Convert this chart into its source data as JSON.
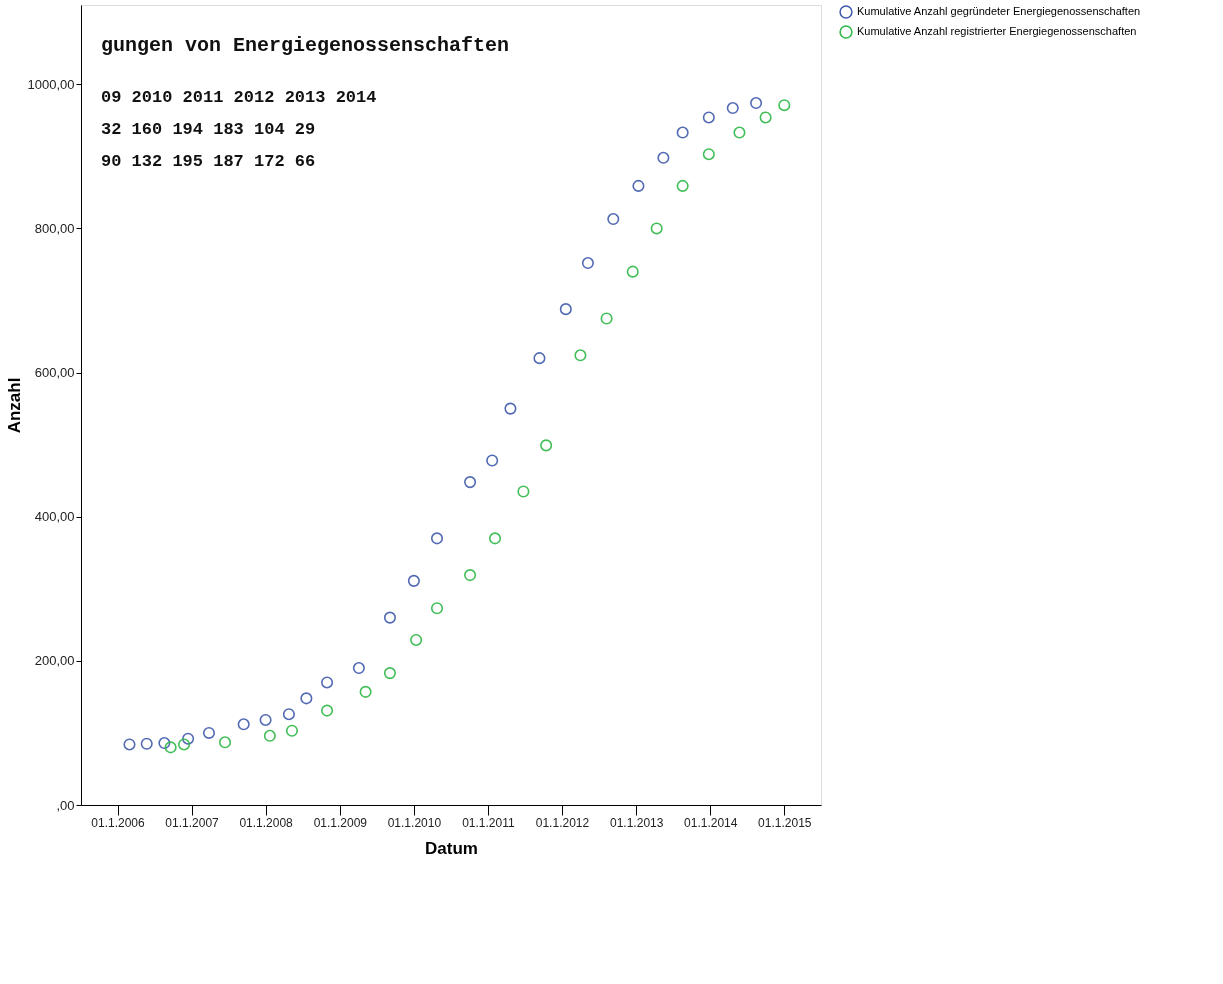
{
  "chart_data": {
    "type": "scatter",
    "xlabel": "Datum",
    "ylabel": "Anzahl",
    "xlim": [
      "2005-07-05",
      "2015-07-01"
    ],
    "xticks": [
      {
        "value": "2006-01-01",
        "label": "01.1.2006"
      },
      {
        "value": "2007-01-01",
        "label": "01.1.2007"
      },
      {
        "value": "2008-01-01",
        "label": "01.1.2008"
      },
      {
        "value": "2009-01-01",
        "label": "01.1.2009"
      },
      {
        "value": "2010-01-01",
        "label": "01.1.2010"
      },
      {
        "value": "2011-01-01",
        "label": "01.1.2011"
      },
      {
        "value": "2012-01-01",
        "label": "01.1.2012"
      },
      {
        "value": "2013-01-01",
        "label": "01.1.2013"
      },
      {
        "value": "2014-01-01",
        "label": "01.1.2014"
      },
      {
        "value": "2015-01-01",
        "label": "01.1.2015"
      }
    ],
    "ylim": [
      0,
      1110
    ],
    "yticks": [
      {
        "value": 0,
        "label": ",00"
      },
      {
        "value": 200,
        "label": "200,00"
      },
      {
        "value": 400,
        "label": "400,00"
      },
      {
        "value": 600,
        "label": "600,00"
      },
      {
        "value": 800,
        "label": "800,00"
      },
      {
        "value": 1000,
        "label": "1000,00"
      }
    ],
    "marker": "circle",
    "grid": false,
    "legend": "top right",
    "series": [
      {
        "name": "Kumulative Anzahl gegründeter Energiegenossenschaften",
        "color": "#3f5aab",
        "x": [
          "2006-03-01",
          "2006-05-25",
          "2006-08-20",
          "2006-12-15",
          "2007-03-28",
          "2007-09-15",
          "2008-01-01",
          "2008-04-25",
          "2008-07-20",
          "2008-10-30",
          "2009-04-05",
          "2009-09-05",
          "2010-01-01",
          "2010-04-25",
          "2010-10-05",
          "2011-01-22",
          "2011-04-22",
          "2011-09-12",
          "2012-01-20",
          "2012-05-08",
          "2012-09-10",
          "2013-01-12",
          "2013-05-15",
          "2013-08-18",
          "2013-12-25",
          "2014-04-22",
          "2014-08-15"
        ],
        "values": [
          84,
          85,
          86,
          92,
          100,
          112,
          118,
          126,
          148,
          170,
          190,
          260,
          311,
          370,
          448,
          478,
          550,
          620,
          688,
          752,
          813,
          859,
          898,
          933,
          954,
          967,
          974
        ]
      },
      {
        "name": "Kumulative Anzahl registrierter Energiegenossenschaften",
        "color": "#2eb847",
        "x": [
          "2006-09-20",
          "2006-11-25",
          "2007-06-15",
          "2008-01-22",
          "2008-05-10",
          "2008-10-30",
          "2009-05-08",
          "2009-09-05",
          "2010-01-12",
          "2010-04-25",
          "2010-10-05",
          "2011-02-05",
          "2011-06-25",
          "2011-10-15",
          "2012-04-01",
          "2012-08-08",
          "2012-12-15",
          "2013-04-12",
          "2013-08-18",
          "2013-12-25",
          "2014-05-25",
          "2014-10-01",
          "2015-01-01"
        ],
        "values": [
          80,
          84,
          87,
          96,
          103,
          131,
          157,
          183,
          229,
          273,
          319,
          370,
          435,
          499,
          624,
          675,
          740,
          800,
          859,
          903,
          933,
          954,
          971
        ]
      }
    ],
    "annotations": [
      "gungen von Energiegenossenschaften",
      "09   2010   2011   2012   2013   2014",
      "32    160    194    183    104     29",
      "90    132    195    187    172     66"
    ]
  }
}
